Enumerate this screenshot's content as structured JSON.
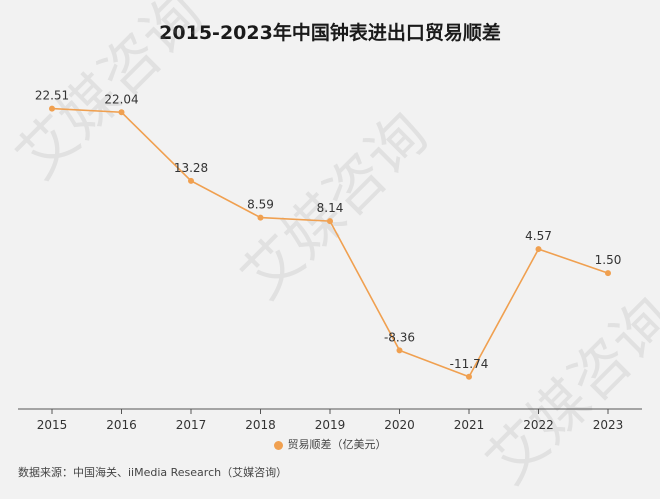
{
  "title": "2015-2023年中国钟表进出口贸易顺差",
  "legend_label": "贸易顺差（亿美元）",
  "source": "数据来源：中国海关、iiMedia Research（艾媒咨询）",
  "watermark": "艾媒咨询",
  "colors": {
    "line": "#f0a050",
    "axis": "#555555",
    "text": "#333333"
  },
  "chart_data": {
    "type": "line",
    "title": "2015-2023年中国钟表进出口贸易顺差",
    "categories": [
      "2015",
      "2016",
      "2017",
      "2018",
      "2019",
      "2020",
      "2021",
      "2022",
      "2023"
    ],
    "series": [
      {
        "name": "贸易顺差（亿美元）",
        "values": [
          22.51,
          22.04,
          13.28,
          8.59,
          8.14,
          -8.36,
          -11.74,
          4.57,
          1.5
        ]
      }
    ],
    "value_labels": [
      "22.51",
      "22.04",
      "13.28",
      "8.59",
      "8.14",
      "-8.36",
      "-11.74",
      "4.57",
      "1.50"
    ],
    "ylim": [
      -13.3,
      24.5
    ],
    "legend_position": "bottom",
    "grid": false
  }
}
